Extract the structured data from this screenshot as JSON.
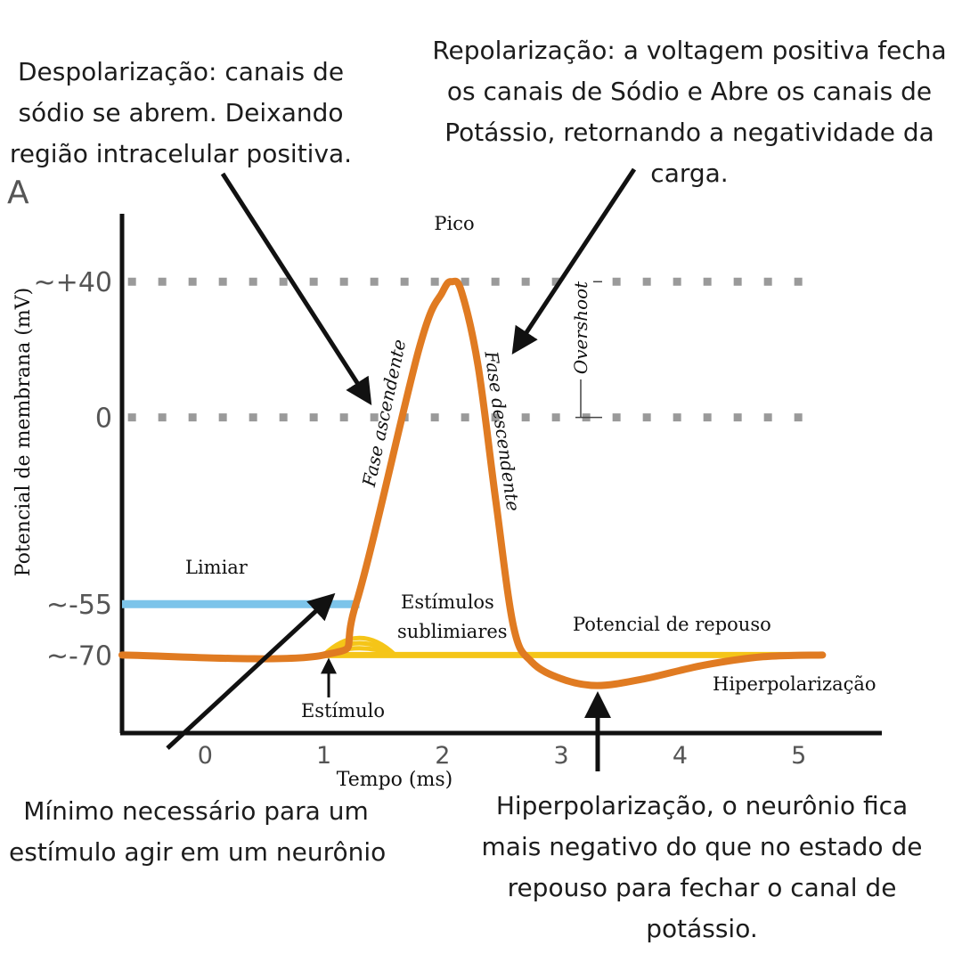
{
  "annotations": {
    "depolarization": [
      "Despolarização: canais de",
      "sódio se abrem. Deixando",
      "região intracelular positiva."
    ],
    "repolarization": [
      "Repolarização: a voltagem positiva fecha",
      "os canais de Sódio e Abre os canais de",
      "Potássio, retornando a negatividade da",
      "carga."
    ],
    "threshold_note": [
      "Mínimo necessário para um",
      "estímulo agir em um neurônio"
    ],
    "hyperpolarization_note": [
      "Hiperpolarização, o neurônio fica",
      "mais negativo do que no estado de",
      "repouso para fechar o canal de",
      "potássio."
    ]
  },
  "chart_data": {
    "type": "line",
    "panel_label": "A",
    "xlabel": "Tempo (ms)",
    "ylabel": "Potencial de membrana (mV)",
    "x_ticks": [
      "0",
      "1",
      "2",
      "3",
      "4",
      "5"
    ],
    "y_ticks": [
      {
        "value": 40,
        "label": "~+40"
      },
      {
        "value": 0,
        "label": "0"
      },
      {
        "value": -55,
        "label": "~-55"
      },
      {
        "value": -70,
        "label": "~-70"
      }
    ],
    "xlim": [
      -0.7,
      5.7
    ],
    "ylim": [
      -93,
      60
    ],
    "reference_lines": [
      {
        "value": 40,
        "style": "dotted",
        "color": "#9a9a9a"
      },
      {
        "value": 0,
        "style": "dotted",
        "color": "#9a9a9a"
      }
    ],
    "threshold": {
      "label": "Limiar",
      "value": -55,
      "x_start": -0.7,
      "x_end": 1.3,
      "color": "#7cc4ea"
    },
    "resting": {
      "label": "Potencial de repouso",
      "value": -70,
      "x_start": 1.0,
      "x_end": 5.2,
      "color": "#f5c518"
    },
    "action_potential": {
      "color": "#e07b22",
      "points": [
        [
          -0.7,
          -70
        ],
        [
          1.0,
          -70
        ],
        [
          1.27,
          -55
        ],
        [
          1.8,
          20
        ],
        [
          2.0,
          37
        ],
        [
          2.08,
          40
        ],
        [
          2.16,
          37
        ],
        [
          2.3,
          15
        ],
        [
          2.45,
          -25
        ],
        [
          2.6,
          -62
        ],
        [
          2.75,
          -72
        ],
        [
          3.0,
          -77
        ],
        [
          3.3,
          -79
        ],
        [
          3.7,
          -77
        ],
        [
          4.2,
          -73
        ],
        [
          4.7,
          -70.5
        ],
        [
          5.2,
          -70
        ]
      ]
    },
    "subthreshold": {
      "label": [
        "Estímulos",
        "sublimiares"
      ],
      "color": "#f5c518",
      "peaks": [
        -65,
        -66.5,
        -68
      ]
    },
    "labels": {
      "peak": "Pico",
      "overshoot": "Overshoot",
      "rising_phase": "Fase ascendente",
      "falling_phase": "Fase descendente",
      "stimulus": "Estímulo",
      "hyperpolarization": "Hiperpolarização"
    }
  }
}
